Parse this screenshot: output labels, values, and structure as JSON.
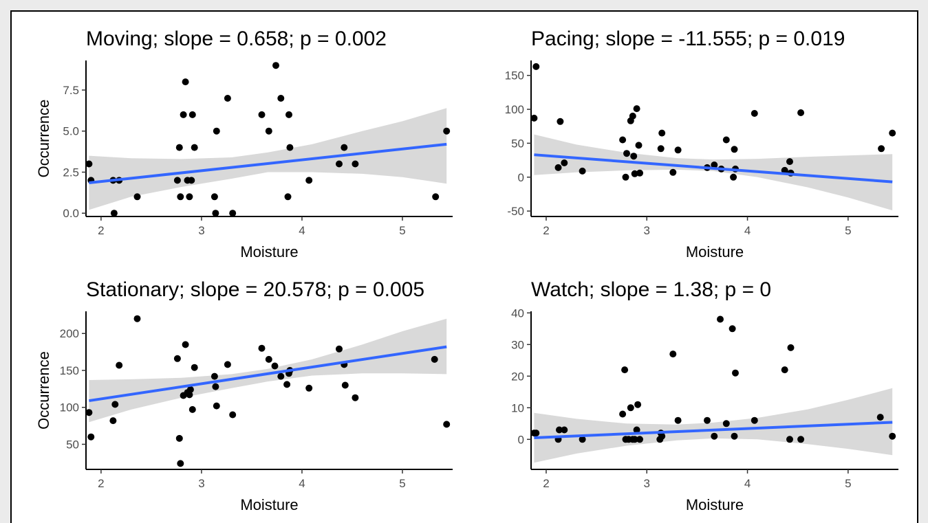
{
  "chart_data": [
    {
      "type": "scatter",
      "title": "Moving; slope = 0.658; p = 0.002",
      "xlabel": "Moisture",
      "ylabel": "Occurrence",
      "xlim": [
        1.85,
        5.5
      ],
      "ylim": [
        -0.2,
        9.3
      ],
      "xticks": [
        2,
        3,
        4,
        5
      ],
      "yticks": [
        0.0,
        2.5,
        5.0,
        7.5
      ],
      "ytick_labels": [
        "0.0",
        "2.5",
        "5.0",
        "7.5"
      ],
      "points": [
        [
          1.88,
          3
        ],
        [
          1.9,
          2
        ],
        [
          2.12,
          2
        ],
        [
          2.13,
          0
        ],
        [
          2.18,
          2
        ],
        [
          2.36,
          1
        ],
        [
          2.76,
          2
        ],
        [
          2.78,
          4
        ],
        [
          2.79,
          1
        ],
        [
          2.82,
          6
        ],
        [
          2.84,
          8
        ],
        [
          2.86,
          2
        ],
        [
          2.88,
          1
        ],
        [
          2.9,
          2
        ],
        [
          2.91,
          6
        ],
        [
          2.93,
          4
        ],
        [
          3.13,
          1
        ],
        [
          3.14,
          0
        ],
        [
          3.15,
          5
        ],
        [
          3.26,
          7
        ],
        [
          3.31,
          0
        ],
        [
          3.6,
          6
        ],
        [
          3.67,
          5
        ],
        [
          3.74,
          9
        ],
        [
          3.79,
          7
        ],
        [
          3.86,
          1
        ],
        [
          3.87,
          6
        ],
        [
          3.88,
          4
        ],
        [
          4.07,
          2
        ],
        [
          4.37,
          3
        ],
        [
          4.42,
          4
        ],
        [
          4.53,
          3
        ],
        [
          5.33,
          1
        ],
        [
          5.44,
          5
        ]
      ],
      "fit": {
        "x": [
          1.88,
          5.44
        ],
        "y": [
          1.85,
          4.2
        ]
      },
      "band": {
        "x": [
          1.88,
          2.3,
          2.8,
          3.3,
          3.66,
          4.1,
          4.6,
          5.0,
          5.44
        ],
        "lower": [
          0.2,
          1.0,
          1.6,
          2.1,
          2.5,
          2.5,
          2.4,
          2.2,
          1.8
        ],
        "upper": [
          3.5,
          3.35,
          3.3,
          3.4,
          3.7,
          4.2,
          5.0,
          5.6,
          6.4
        ]
      },
      "point_color": "#000000",
      "line_color": "#3366ff",
      "band_color": "#d9d9d9"
    },
    {
      "type": "scatter",
      "title": "Pacing; slope = -11.555; p = 0.019",
      "xlabel": "Moisture",
      "ylabel": "",
      "xlim": [
        1.85,
        5.5
      ],
      "ylim": [
        -58,
        172
      ],
      "xticks": [
        2,
        3,
        4,
        5
      ],
      "yticks": [
        -50,
        0,
        50,
        100,
        150
      ],
      "ytick_labels": [
        "-50",
        "0",
        "50",
        "100",
        "150"
      ],
      "points": [
        [
          1.88,
          87
        ],
        [
          1.9,
          163
        ],
        [
          2.12,
          14
        ],
        [
          2.14,
          82
        ],
        [
          2.18,
          21
        ],
        [
          2.36,
          9
        ],
        [
          2.76,
          55
        ],
        [
          2.79,
          0
        ],
        [
          2.8,
          35
        ],
        [
          2.84,
          83
        ],
        [
          2.86,
          90
        ],
        [
          2.87,
          31
        ],
        [
          2.88,
          5
        ],
        [
          2.9,
          101
        ],
        [
          2.92,
          47
        ],
        [
          2.93,
          6
        ],
        [
          3.14,
          42
        ],
        [
          3.15,
          65
        ],
        [
          3.26,
          7
        ],
        [
          3.31,
          40
        ],
        [
          3.6,
          14
        ],
        [
          3.67,
          18
        ],
        [
          3.74,
          12
        ],
        [
          3.79,
          55
        ],
        [
          3.86,
          0
        ],
        [
          3.87,
          41
        ],
        [
          3.88,
          12
        ],
        [
          4.07,
          94
        ],
        [
          4.37,
          10
        ],
        [
          4.42,
          23
        ],
        [
          4.43,
          6
        ],
        [
          4.53,
          95
        ],
        [
          5.33,
          42
        ],
        [
          5.44,
          65
        ]
      ],
      "fit": {
        "x": [
          1.88,
          5.44
        ],
        "y": [
          33,
          -7
        ]
      },
      "band": {
        "x": [
          1.88,
          2.3,
          2.8,
          3.3,
          3.66,
          4.1,
          4.6,
          5.0,
          5.44
        ],
        "lower": [
          3,
          7,
          10,
          11,
          9,
          0,
          -15,
          -30,
          -49
        ],
        "upper": [
          63,
          48,
          36,
          28,
          26,
          27,
          30,
          32,
          34
        ]
      },
      "point_color": "#000000",
      "line_color": "#3366ff",
      "band_color": "#d9d9d9"
    },
    {
      "type": "scatter",
      "title": "Stationary; slope = 20.578; p = 0.005",
      "xlabel": "Moisture",
      "ylabel": "Occurrence",
      "xlim": [
        1.85,
        5.5
      ],
      "ylim": [
        16,
        230
      ],
      "xticks": [
        2,
        3,
        4,
        5
      ],
      "yticks": [
        50,
        100,
        150,
        200
      ],
      "ytick_labels": [
        "50",
        "100",
        "150",
        "200"
      ],
      "points": [
        [
          1.88,
          93
        ],
        [
          1.9,
          60
        ],
        [
          2.12,
          82
        ],
        [
          2.14,
          104
        ],
        [
          2.18,
          157
        ],
        [
          2.36,
          220
        ],
        [
          2.76,
          166
        ],
        [
          2.78,
          58
        ],
        [
          2.79,
          24
        ],
        [
          2.82,
          116
        ],
        [
          2.84,
          185
        ],
        [
          2.86,
          120
        ],
        [
          2.88,
          117
        ],
        [
          2.89,
          124
        ],
        [
          2.91,
          97
        ],
        [
          2.93,
          154
        ],
        [
          3.13,
          142
        ],
        [
          3.14,
          128
        ],
        [
          3.15,
          102
        ],
        [
          3.26,
          158
        ],
        [
          3.31,
          90
        ],
        [
          3.6,
          180
        ],
        [
          3.67,
          165
        ],
        [
          3.73,
          156
        ],
        [
          3.79,
          142
        ],
        [
          3.85,
          131
        ],
        [
          3.87,
          146
        ],
        [
          3.88,
          150
        ],
        [
          4.07,
          126
        ],
        [
          4.37,
          179
        ],
        [
          4.42,
          158
        ],
        [
          4.43,
          130
        ],
        [
          4.53,
          113
        ],
        [
          5.32,
          165
        ],
        [
          5.44,
          77
        ]
      ],
      "fit": {
        "x": [
          1.88,
          5.44
        ],
        "y": [
          109,
          182
        ]
      },
      "band": {
        "x": [
          1.88,
          2.3,
          2.8,
          3.3,
          3.66,
          4.1,
          4.6,
          5.0,
          5.44
        ],
        "lower": [
          80,
          97,
          113,
          126,
          135,
          143,
          146,
          146,
          145
        ],
        "upper": [
          137,
          138,
          140,
          145,
          152,
          165,
          185,
          203,
          220
        ]
      },
      "point_color": "#000000",
      "line_color": "#3366ff",
      "band_color": "#d9d9d9"
    },
    {
      "type": "scatter",
      "title": "Watch; slope = 1.38; p = 0",
      "xlabel": "Moisture",
      "ylabel": "",
      "xlim": [
        1.85,
        5.5
      ],
      "ylim": [
        -9.5,
        40.5
      ],
      "xticks": [
        2,
        3,
        4,
        5
      ],
      "yticks": [
        0,
        10,
        20,
        30,
        40
      ],
      "ytick_labels": [
        "0",
        "10",
        "20",
        "30",
        "40"
      ],
      "points": [
        [
          1.88,
          2
        ],
        [
          1.9,
          2
        ],
        [
          2.12,
          0
        ],
        [
          2.13,
          3
        ],
        [
          2.18,
          3
        ],
        [
          2.36,
          0
        ],
        [
          2.76,
          8
        ],
        [
          2.78,
          22
        ],
        [
          2.79,
          0
        ],
        [
          2.82,
          0
        ],
        [
          2.84,
          10
        ],
        [
          2.86,
          0
        ],
        [
          2.88,
          0
        ],
        [
          2.9,
          3
        ],
        [
          2.91,
          11
        ],
        [
          2.93,
          0
        ],
        [
          3.13,
          0
        ],
        [
          3.14,
          2
        ],
        [
          3.15,
          1
        ],
        [
          3.26,
          27
        ],
        [
          3.31,
          6
        ],
        [
          3.6,
          6
        ],
        [
          3.67,
          1
        ],
        [
          3.73,
          38
        ],
        [
          3.79,
          5
        ],
        [
          3.85,
          35
        ],
        [
          3.87,
          1
        ],
        [
          3.88,
          21
        ],
        [
          4.07,
          6
        ],
        [
          4.37,
          22
        ],
        [
          4.42,
          0
        ],
        [
          4.43,
          29
        ],
        [
          4.53,
          0
        ],
        [
          5.32,
          7
        ],
        [
          5.44,
          1
        ]
      ],
      "fit": {
        "x": [
          1.88,
          5.44
        ],
        "y": [
          0.5,
          5.4
        ]
      },
      "band": {
        "x": [
          1.88,
          2.3,
          2.8,
          3.3,
          3.66,
          4.1,
          4.6,
          5.0,
          5.44
        ],
        "lower": [
          -7.4,
          -4.5,
          -2.0,
          -0.3,
          0.3,
          0.0,
          -1.5,
          -3.0,
          -5.0
        ],
        "upper": [
          8.4,
          6.5,
          5.0,
          4.7,
          5.3,
          6.8,
          9.5,
          12.5,
          16.2
        ]
      },
      "point_color": "#000000",
      "line_color": "#3366ff",
      "band_color": "#d9d9d9"
    }
  ]
}
